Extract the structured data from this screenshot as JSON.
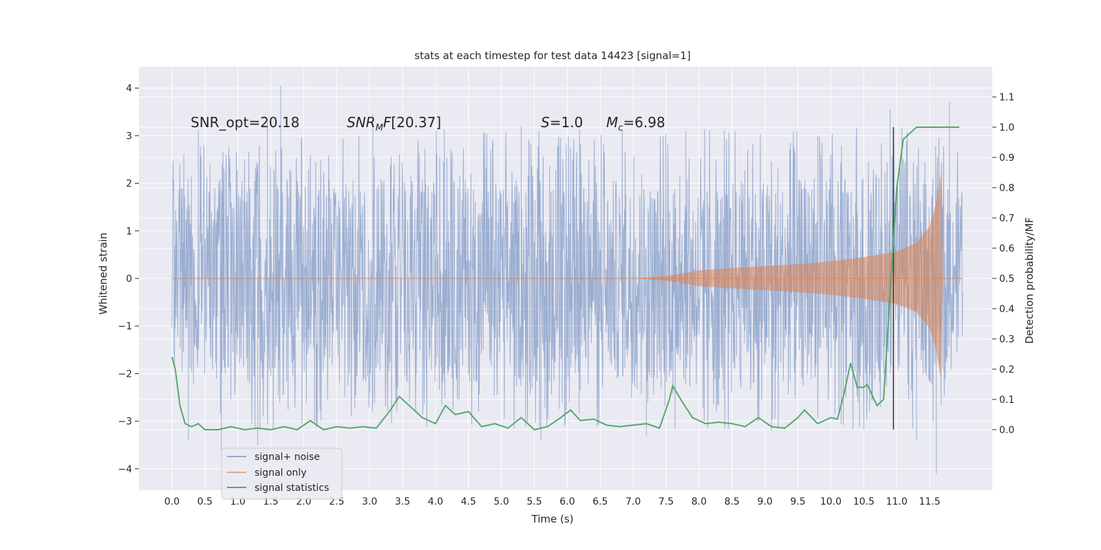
{
  "chart_data": {
    "type": "line",
    "title": "stats at each timestep for test data 14423 [signal=1]",
    "xlabel": "Time (s)",
    "ylabel": "Whitened strain",
    "y2label": "Detection probability/MF",
    "xlim": [
      -0.5,
      12.45
    ],
    "ylim": [
      -4.45,
      4.45
    ],
    "y2lim": [
      -0.2,
      1.2
    ],
    "x_ticks": [
      "0.0",
      "0.5",
      "1.0",
      "1.5",
      "2.0",
      "2.5",
      "3.0",
      "3.5",
      "4.0",
      "4.5",
      "5.0",
      "5.5",
      "6.0",
      "6.5",
      "7.0",
      "7.5",
      "8.0",
      "8.5",
      "9.0",
      "9.5",
      "10.0",
      "10.5",
      "11.0",
      "11.5"
    ],
    "y_ticks": [
      "4",
      "3",
      "2",
      "1",
      "0",
      "−1",
      "−2",
      "−3",
      "−4"
    ],
    "y2_ticks": [
      "1.1",
      "1.0",
      "0.9",
      "0.8",
      "0.7",
      "0.6",
      "0.5",
      "0.4",
      "0.3",
      "0.2",
      "0.1",
      "0.0"
    ],
    "grid": true,
    "legend_position": "lower-left",
    "annotations": {
      "snr_opt": "SNR_opt=20.18",
      "snr_mf": "[20.37]",
      "s_value": "=1.0",
      "mc_value": "=6.98"
    },
    "vline_x": 10.95,
    "series": [
      {
        "name": "signal+ noise",
        "color": "#4c72b0",
        "x_range": [
          0.0,
          12.0
        ],
        "envelope_upper": [
          [
            0.0,
            1.9
          ],
          [
            1.0,
            2.1
          ],
          [
            2.0,
            2.1
          ],
          [
            3.0,
            2.1
          ],
          [
            4.0,
            2.1
          ],
          [
            5.0,
            2.1
          ],
          [
            6.0,
            2.1
          ],
          [
            7.0,
            2.1
          ],
          [
            8.0,
            2.1
          ],
          [
            9.0,
            2.1
          ],
          [
            10.0,
            2.1
          ],
          [
            10.5,
            2.2
          ],
          [
            11.0,
            2.2
          ],
          [
            11.5,
            2.0
          ],
          [
            12.0,
            1.9
          ]
        ],
        "envelope_lower": [
          [
            0.0,
            -1.3
          ],
          [
            1.0,
            -2.2
          ],
          [
            2.0,
            -2.2
          ],
          [
            3.0,
            -2.2
          ],
          [
            4.0,
            -2.2
          ],
          [
            5.0,
            -2.2
          ],
          [
            6.0,
            -2.2
          ],
          [
            7.0,
            -2.2
          ],
          [
            8.0,
            -2.2
          ],
          [
            9.0,
            -2.2
          ],
          [
            10.0,
            -2.2
          ],
          [
            11.0,
            -2.2
          ],
          [
            11.5,
            -2.3
          ],
          [
            12.0,
            -1.0
          ]
        ],
        "spike_peaks": [
          [
            1.65,
            4.05
          ],
          [
            3.05,
            3.45
          ],
          [
            1.45,
            3.3
          ],
          [
            11.8,
            3.7
          ],
          [
            10.9,
            3.55
          ],
          [
            0.4,
            3.1
          ],
          [
            5.3,
            3.2
          ],
          [
            7.8,
            3.1
          ],
          [
            9.8,
            3.0
          ],
          [
            11.6,
            -4.1
          ],
          [
            0.75,
            -3.6
          ],
          [
            1.3,
            -3.5
          ],
          [
            5.6,
            -3.4
          ],
          [
            7.2,
            -3.3
          ],
          [
            11.3,
            -3.4
          ],
          [
            0.25,
            -3.4
          ],
          [
            9.1,
            -3.2
          ]
        ]
      },
      {
        "name": "signal only",
        "color": "#dd8452",
        "x_range": [
          0.0,
          12.0
        ],
        "amplitude": [
          [
            0.0,
            0.0
          ],
          [
            7.0,
            0.0
          ],
          [
            7.5,
            0.05
          ],
          [
            8.0,
            0.17
          ],
          [
            8.5,
            0.22
          ],
          [
            9.0,
            0.26
          ],
          [
            9.5,
            0.3
          ],
          [
            10.0,
            0.36
          ],
          [
            10.5,
            0.45
          ],
          [
            11.0,
            0.56
          ],
          [
            11.3,
            0.75
          ],
          [
            11.5,
            1.1
          ],
          [
            11.6,
            1.6
          ],
          [
            11.67,
            2.25
          ],
          [
            11.7,
            0.0
          ],
          [
            12.0,
            0.0
          ]
        ]
      },
      {
        "name": "signal statistics",
        "color": "#55a868",
        "axis": "right",
        "points": [
          [
            0.0,
            0.24
          ],
          [
            0.05,
            0.2
          ],
          [
            0.12,
            0.08
          ],
          [
            0.2,
            0.02
          ],
          [
            0.3,
            0.01
          ],
          [
            0.4,
            0.02
          ],
          [
            0.5,
            0.0
          ],
          [
            0.7,
            0.0
          ],
          [
            0.9,
            0.01
          ],
          [
            1.1,
            0.0
          ],
          [
            1.3,
            0.005
          ],
          [
            1.5,
            0.0
          ],
          [
            1.7,
            0.01
          ],
          [
            1.9,
            0.0
          ],
          [
            2.1,
            0.03
          ],
          [
            2.3,
            0.0
          ],
          [
            2.5,
            0.01
          ],
          [
            2.7,
            0.005
          ],
          [
            2.9,
            0.01
          ],
          [
            3.1,
            0.005
          ],
          [
            3.3,
            0.06
          ],
          [
            3.45,
            0.11
          ],
          [
            3.6,
            0.08
          ],
          [
            3.8,
            0.04
          ],
          [
            4.0,
            0.02
          ],
          [
            4.15,
            0.08
          ],
          [
            4.3,
            0.05
          ],
          [
            4.5,
            0.06
          ],
          [
            4.7,
            0.01
          ],
          [
            4.9,
            0.02
          ],
          [
            5.1,
            0.005
          ],
          [
            5.3,
            0.04
          ],
          [
            5.5,
            0.0
          ],
          [
            5.7,
            0.01
          ],
          [
            5.9,
            0.04
          ],
          [
            6.05,
            0.065
          ],
          [
            6.2,
            0.03
          ],
          [
            6.4,
            0.035
          ],
          [
            6.6,
            0.015
          ],
          [
            6.8,
            0.01
          ],
          [
            7.0,
            0.015
          ],
          [
            7.2,
            0.02
          ],
          [
            7.4,
            0.005
          ],
          [
            7.55,
            0.1
          ],
          [
            7.6,
            0.145
          ],
          [
            7.75,
            0.09
          ],
          [
            7.9,
            0.04
          ],
          [
            8.1,
            0.02
          ],
          [
            8.3,
            0.025
          ],
          [
            8.5,
            0.02
          ],
          [
            8.7,
            0.01
          ],
          [
            8.9,
            0.04
          ],
          [
            9.1,
            0.01
          ],
          [
            9.3,
            0.005
          ],
          [
            9.5,
            0.04
          ],
          [
            9.6,
            0.065
          ],
          [
            9.8,
            0.02
          ],
          [
            10.0,
            0.04
          ],
          [
            10.1,
            0.035
          ],
          [
            10.2,
            0.12
          ],
          [
            10.3,
            0.22
          ],
          [
            10.4,
            0.14
          ],
          [
            10.5,
            0.14
          ],
          [
            10.55,
            0.15
          ],
          [
            10.7,
            0.08
          ],
          [
            10.8,
            0.1
          ],
          [
            10.9,
            0.45
          ],
          [
            11.0,
            0.8
          ],
          [
            11.1,
            0.96
          ],
          [
            11.3,
            1.0
          ],
          [
            11.95,
            1.0
          ]
        ]
      }
    ]
  }
}
